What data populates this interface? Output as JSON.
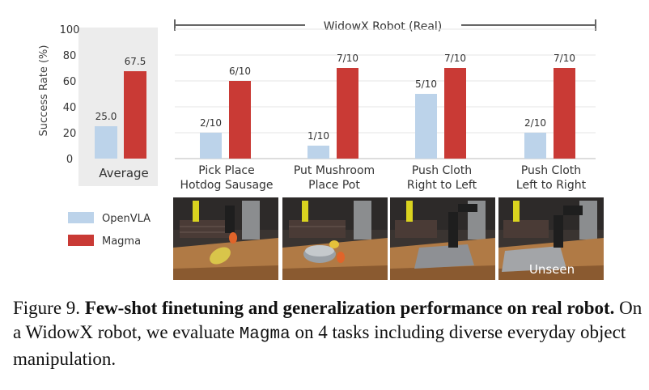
{
  "chart_data": [
    {
      "type": "bar",
      "categories": [
        "Average"
      ],
      "series": [
        {
          "name": "OpenVLA",
          "values": [
            25.0
          ],
          "labels": [
            "25.0"
          ]
        },
        {
          "name": "Magma",
          "values": [
            67.5
          ],
          "labels": [
            "67.5"
          ]
        }
      ],
      "ylabel": "Success Rate (%)",
      "yticks": [
        "100",
        "80",
        "60",
        "40",
        "20",
        "0"
      ],
      "ylim": [
        0,
        100
      ],
      "grid": false
    },
    {
      "type": "bar",
      "group_label": "WidowX Robot (Real)",
      "categories": [
        [
          "Pick Place",
          "Hotdog Sausage"
        ],
        [
          "Put Mushroom",
          "Place Pot"
        ],
        [
          "Push Cloth",
          "Right to Left"
        ],
        [
          "Push Cloth",
          "Left to Right"
        ]
      ],
      "series": [
        {
          "name": "OpenVLA",
          "values": [
            20,
            10,
            50,
            20
          ],
          "labels": [
            "2/10",
            "1/10",
            "5/10",
            "2/10"
          ]
        },
        {
          "name": "Magma",
          "values": [
            60,
            70,
            70,
            70
          ],
          "labels": [
            "6/10",
            "7/10",
            "7/10",
            "7/10"
          ]
        }
      ],
      "ylim": [
        0,
        100
      ],
      "grid": true
    }
  ],
  "legend": [
    {
      "name": "OpenVLA",
      "color": "#bcd3ea"
    },
    {
      "name": "Magma",
      "color": "#c93a35"
    }
  ],
  "colors": {
    "openvla": "#bcd3ea",
    "magma": "#c93a35",
    "avg_panel": "#ececec",
    "axis": "#666666"
  },
  "photos": [
    {
      "name": "pick-place-hotdog-photo"
    },
    {
      "name": "put-mushroom-photo"
    },
    {
      "name": "push-cloth-right-left-photo"
    },
    {
      "name": "push-cloth-left-right-photo",
      "overlay": "Unseen"
    }
  ],
  "caption": {
    "figure_label": "Figure 9.",
    "bold_text": "Few-shot finetuning and generalization performance on real robot.",
    "text_before_mono": "On a WidowX robot, we evaluate",
    "mono_text": "Magma",
    "text_after_mono": "on 4 tasks including diverse everyday object manipulation."
  }
}
